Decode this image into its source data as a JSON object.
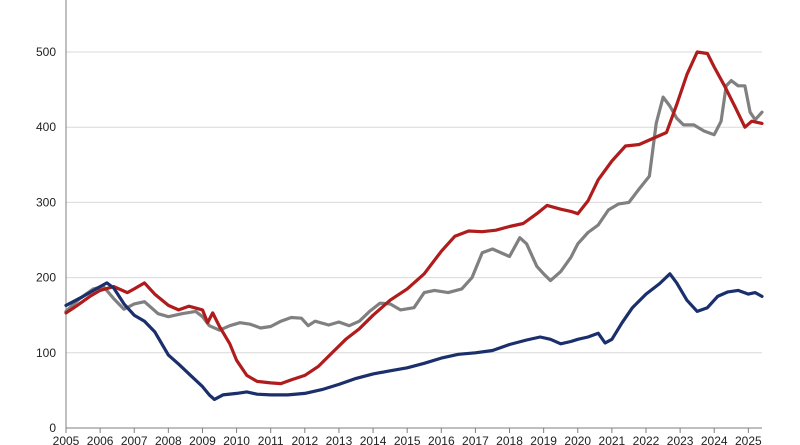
{
  "chart_data": {
    "type": "line",
    "title": "",
    "xlabel": "",
    "ylabel": "",
    "xlim": [
      2005,
      2025.4
    ],
    "ylim": [
      0,
      500
    ],
    "grid": true,
    "legend": "none",
    "x_ticks": [
      "2005",
      "2006",
      "2007",
      "2008",
      "2009",
      "2010",
      "2011",
      "2012",
      "2013",
      "2014",
      "2015",
      "2016",
      "2017",
      "2018",
      "2019",
      "2020",
      "2021",
      "2022",
      "2023",
      "2024",
      "2025"
    ],
    "y_ticks": [
      "0",
      "100",
      "200",
      "300",
      "400",
      "500"
    ],
    "series": [
      {
        "color": "#1a2f6b",
        "points": [
          [
            2005.0,
            163
          ],
          [
            2005.5,
            175
          ],
          [
            2006.0,
            188
          ],
          [
            2006.2,
            193
          ],
          [
            2006.4,
            186
          ],
          [
            2006.7,
            165
          ],
          [
            2007.0,
            150
          ],
          [
            2007.3,
            142
          ],
          [
            2007.6,
            128
          ],
          [
            2008.0,
            97
          ],
          [
            2008.3,
            85
          ],
          [
            2008.7,
            68
          ],
          [
            2009.0,
            55
          ],
          [
            2009.2,
            44
          ],
          [
            2009.35,
            38
          ],
          [
            2009.6,
            44
          ],
          [
            2010.0,
            46
          ],
          [
            2010.3,
            48
          ],
          [
            2010.6,
            45
          ],
          [
            2011.0,
            44
          ],
          [
            2011.5,
            44
          ],
          [
            2012.0,
            46
          ],
          [
            2012.5,
            51
          ],
          [
            2013.0,
            58
          ],
          [
            2013.5,
            66
          ],
          [
            2014.0,
            72
          ],
          [
            2014.5,
            76
          ],
          [
            2015.0,
            80
          ],
          [
            2015.5,
            86
          ],
          [
            2016.0,
            93
          ],
          [
            2016.5,
            98
          ],
          [
            2017.0,
            100
          ],
          [
            2017.5,
            103
          ],
          [
            2018.0,
            111
          ],
          [
            2018.5,
            117
          ],
          [
            2018.9,
            121
          ],
          [
            2019.2,
            118
          ],
          [
            2019.5,
            112
          ],
          [
            2019.8,
            115
          ],
          [
            2020.0,
            118
          ],
          [
            2020.3,
            121
          ],
          [
            2020.6,
            126
          ],
          [
            2020.8,
            113
          ],
          [
            2021.0,
            118
          ],
          [
            2021.3,
            140
          ],
          [
            2021.6,
            160
          ],
          [
            2022.0,
            178
          ],
          [
            2022.4,
            192
          ],
          [
            2022.7,
            205
          ],
          [
            2022.9,
            193
          ],
          [
            2023.2,
            170
          ],
          [
            2023.5,
            155
          ],
          [
            2023.8,
            160
          ],
          [
            2024.1,
            175
          ],
          [
            2024.4,
            181
          ],
          [
            2024.7,
            183
          ],
          [
            2025.0,
            178
          ],
          [
            2025.2,
            180
          ],
          [
            2025.4,
            175
          ]
        ]
      },
      {
        "color": "#b01c1c",
        "points": [
          [
            2005.0,
            153
          ],
          [
            2005.3,
            162
          ],
          [
            2005.7,
            175
          ],
          [
            2006.0,
            183
          ],
          [
            2006.4,
            188
          ],
          [
            2006.8,
            180
          ],
          [
            2007.0,
            185
          ],
          [
            2007.3,
            193
          ],
          [
            2007.6,
            178
          ],
          [
            2008.0,
            163
          ],
          [
            2008.3,
            157
          ],
          [
            2008.6,
            162
          ],
          [
            2009.0,
            157
          ],
          [
            2009.15,
            140
          ],
          [
            2009.3,
            153
          ],
          [
            2009.5,
            135
          ],
          [
            2009.8,
            112
          ],
          [
            2010.0,
            90
          ],
          [
            2010.3,
            70
          ],
          [
            2010.6,
            62
          ],
          [
            2011.0,
            60
          ],
          [
            2011.3,
            59
          ],
          [
            2011.6,
            64
          ],
          [
            2012.0,
            70
          ],
          [
            2012.4,
            82
          ],
          [
            2012.8,
            100
          ],
          [
            2013.2,
            118
          ],
          [
            2013.6,
            132
          ],
          [
            2014.0,
            150
          ],
          [
            2014.5,
            170
          ],
          [
            2015.0,
            185
          ],
          [
            2015.5,
            205
          ],
          [
            2016.0,
            235
          ],
          [
            2016.4,
            255
          ],
          [
            2016.8,
            262
          ],
          [
            2017.2,
            261
          ],
          [
            2017.6,
            263
          ],
          [
            2018.0,
            268
          ],
          [
            2018.4,
            272
          ],
          [
            2018.8,
            285
          ],
          [
            2019.1,
            296
          ],
          [
            2019.5,
            291
          ],
          [
            2019.8,
            288
          ],
          [
            2020.0,
            285
          ],
          [
            2020.3,
            302
          ],
          [
            2020.6,
            330
          ],
          [
            2021.0,
            355
          ],
          [
            2021.4,
            375
          ],
          [
            2021.8,
            377
          ],
          [
            2022.2,
            385
          ],
          [
            2022.6,
            393
          ],
          [
            2022.9,
            430
          ],
          [
            2023.2,
            470
          ],
          [
            2023.5,
            500
          ],
          [
            2023.8,
            498
          ],
          [
            2024.0,
            480
          ],
          [
            2024.3,
            455
          ],
          [
            2024.6,
            428
          ],
          [
            2024.9,
            400
          ],
          [
            2025.1,
            408
          ],
          [
            2025.4,
            405
          ]
        ]
      },
      {
        "color": "#808080",
        "points": [
          [
            2005.0,
            155
          ],
          [
            2005.4,
            172
          ],
          [
            2005.8,
            185
          ],
          [
            2006.1,
            188
          ],
          [
            2006.4,
            172
          ],
          [
            2006.7,
            158
          ],
          [
            2007.0,
            165
          ],
          [
            2007.3,
            168
          ],
          [
            2007.7,
            152
          ],
          [
            2008.0,
            148
          ],
          [
            2008.4,
            152
          ],
          [
            2008.8,
            155
          ],
          [
            2009.0,
            148
          ],
          [
            2009.2,
            136
          ],
          [
            2009.5,
            130
          ],
          [
            2009.8,
            136
          ],
          [
            2010.1,
            140
          ],
          [
            2010.4,
            138
          ],
          [
            2010.7,
            133
          ],
          [
            2011.0,
            135
          ],
          [
            2011.3,
            142
          ],
          [
            2011.6,
            147
          ],
          [
            2011.9,
            146
          ],
          [
            2012.1,
            136
          ],
          [
            2012.3,
            142
          ],
          [
            2012.7,
            137
          ],
          [
            2013.0,
            141
          ],
          [
            2013.3,
            136
          ],
          [
            2013.6,
            142
          ],
          [
            2013.9,
            155
          ],
          [
            2014.2,
            166
          ],
          [
            2014.5,
            165
          ],
          [
            2014.8,
            157
          ],
          [
            2015.2,
            160
          ],
          [
            2015.5,
            180
          ],
          [
            2015.8,
            183
          ],
          [
            2016.2,
            180
          ],
          [
            2016.6,
            185
          ],
          [
            2016.9,
            200
          ],
          [
            2017.2,
            233
          ],
          [
            2017.5,
            238
          ],
          [
            2017.8,
            232
          ],
          [
            2018.0,
            228
          ],
          [
            2018.3,
            253
          ],
          [
            2018.5,
            245
          ],
          [
            2018.8,
            215
          ],
          [
            2019.0,
            205
          ],
          [
            2019.2,
            196
          ],
          [
            2019.5,
            208
          ],
          [
            2019.8,
            227
          ],
          [
            2020.0,
            245
          ],
          [
            2020.3,
            260
          ],
          [
            2020.6,
            270
          ],
          [
            2020.9,
            290
          ],
          [
            2021.2,
            298
          ],
          [
            2021.5,
            300
          ],
          [
            2021.8,
            318
          ],
          [
            2022.1,
            335
          ],
          [
            2022.3,
            405
          ],
          [
            2022.5,
            440
          ],
          [
            2022.7,
            428
          ],
          [
            2022.9,
            412
          ],
          [
            2023.1,
            403
          ],
          [
            2023.4,
            403
          ],
          [
            2023.7,
            395
          ],
          [
            2024.0,
            390
          ],
          [
            2024.2,
            408
          ],
          [
            2024.35,
            455
          ],
          [
            2024.5,
            462
          ],
          [
            2024.7,
            455
          ],
          [
            2024.9,
            455
          ],
          [
            2025.05,
            420
          ],
          [
            2025.2,
            410
          ],
          [
            2025.4,
            420
          ]
        ]
      }
    ]
  }
}
